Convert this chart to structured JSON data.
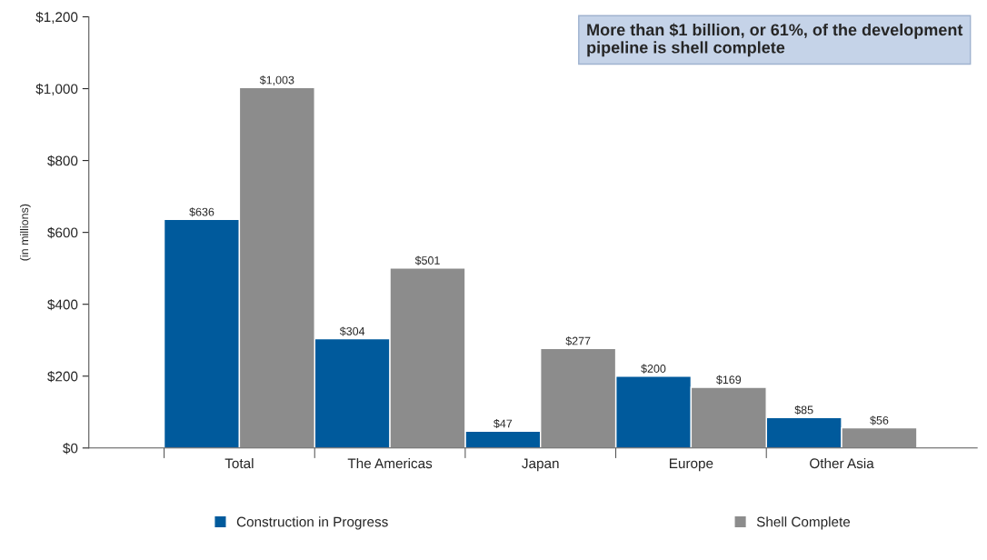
{
  "chart_data": {
    "type": "bar",
    "ylabel": "(in millions)",
    "categories": [
      "Total",
      "The Americas",
      "Japan",
      "Europe",
      "Other Asia"
    ],
    "series": [
      {
        "name": "Construction in Progress",
        "color": "#005a9c",
        "values": [
          636,
          304,
          47,
          200,
          85
        ],
        "value_labels": [
          "$636",
          "$304",
          "$47",
          "$200",
          "$85"
        ]
      },
      {
        "name": "Shell Complete",
        "color": "#8c8c8c",
        "values": [
          1003,
          501,
          277,
          169,
          56
        ],
        "value_labels": [
          "$1,003",
          "$501",
          "$277",
          "$169",
          "$56"
        ]
      }
    ],
    "ylim": [
      0,
      1200
    ],
    "yticks": [
      {
        "value": 0,
        "label": "$0"
      },
      {
        "value": 200,
        "label": "$200"
      },
      {
        "value": 400,
        "label": "$400"
      },
      {
        "value": 600,
        "label": "$600"
      },
      {
        "value": 800,
        "label": "$800"
      },
      {
        "value": 1000,
        "label": "$1,000"
      },
      {
        "value": 1200,
        "label": "$1,200"
      }
    ],
    "annotations": [
      "More than $1 billion, or 61%, of the development pipeline is shell complete"
    ],
    "grid": false,
    "legend": "bottom"
  }
}
